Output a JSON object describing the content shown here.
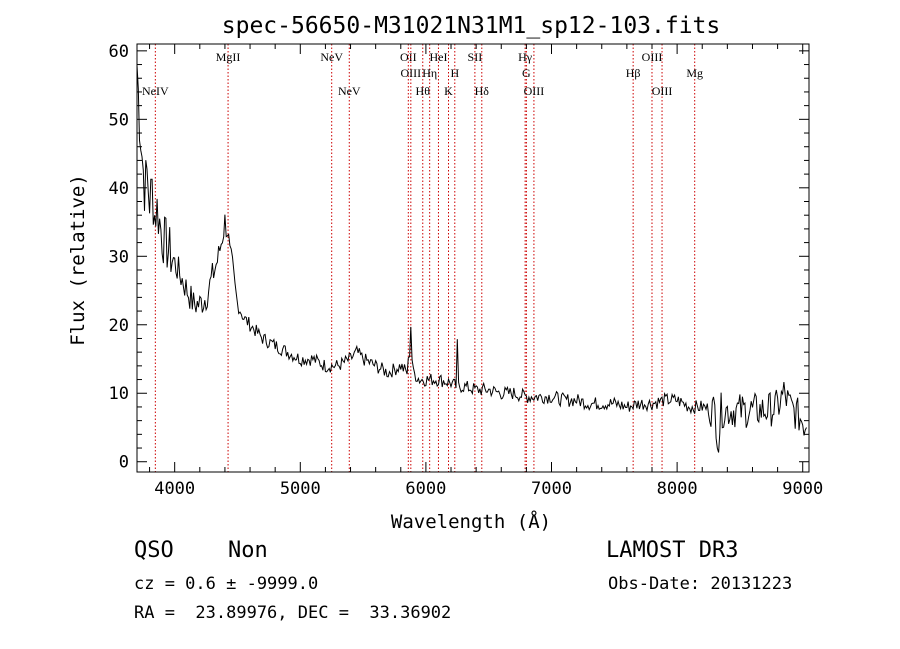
{
  "chart_data": {
    "type": "line",
    "title": "spec-56650-M31021N31M1_sp12-103.fits",
    "xlabel": "Wavelength (Å)",
    "ylabel": "Flux (relative)",
    "xlim": [
      3700,
      9050
    ],
    "ylim": [
      -1.5,
      61
    ],
    "xticks": [
      4000,
      5000,
      6000,
      7000,
      8000,
      9000
    ],
    "yticks": [
      0,
      10,
      20,
      30,
      40,
      50,
      60
    ],
    "series": [
      {
        "name": "spectrum",
        "color": "#000000",
        "x": [
          3700,
          3720,
          3740,
          3760,
          3780,
          3800,
          3820,
          3840,
          3860,
          3880,
          3900,
          3950,
          4000,
          4050,
          4100,
          4150,
          4200,
          4250,
          4300,
          4350,
          4380,
          4400,
          4420,
          4440,
          4460,
          4480,
          4500,
          4550,
          4600,
          4650,
          4700,
          4800,
          4900,
          5000,
          5100,
          5200,
          5300,
          5400,
          5450,
          5500,
          5600,
          5700,
          5800,
          5850,
          5870,
          5880,
          5890,
          5900,
          5950,
          6000,
          6100,
          6200,
          6240,
          6250,
          6260,
          6300,
          6400,
          6500,
          6600,
          6700,
          6800,
          6900,
          7000,
          7100,
          7200,
          7300,
          7400,
          7500,
          7600,
          7700,
          7800,
          7900,
          8000,
          8100,
          8200,
          8300,
          8330,
          8350,
          8400,
          8500,
          8600,
          8700,
          8800,
          8850,
          8900,
          8950,
          9000,
          9030
        ],
        "values": [
          58,
          50,
          45,
          40,
          42,
          38,
          40,
          36,
          37,
          35,
          33,
          31,
          29,
          27,
          25,
          23,
          23,
          24,
          27,
          30,
          33,
          35,
          34,
          30,
          28,
          25,
          23,
          21,
          20,
          19,
          18,
          17,
          16,
          15,
          15,
          14,
          14,
          15,
          16,
          15,
          14,
          13,
          14,
          13,
          16,
          20,
          15,
          13,
          12,
          12,
          12,
          11.5,
          11,
          17,
          11,
          11,
          10.5,
          10.5,
          10,
          10,
          9.5,
          9.5,
          9.5,
          9,
          9,
          8.5,
          8.5,
          8.5,
          8,
          8.5,
          8.5,
          9,
          9,
          8,
          8,
          7.5,
          3,
          7.5,
          7.5,
          7.5,
          7.5,
          7.5,
          8,
          10,
          8,
          7,
          6,
          5
        ]
      }
    ],
    "lines": [
      {
        "label": "NeIV",
        "x": 3846,
        "row": "lower"
      },
      {
        "label": "MgII",
        "x": 4425,
        "row": "upper"
      },
      {
        "label": "NeV",
        "x": 5250,
        "row": "upper"
      },
      {
        "label": "NeV",
        "x": 5390,
        "row": "lower"
      },
      {
        "label": "OII",
        "x": 5860,
        "row": "upper"
      },
      {
        "label": "OIII",
        "x": 5880,
        "row": "middle"
      },
      {
        "label": "Hθ",
        "x": 5975,
        "row": "lower"
      },
      {
        "label": "Hη",
        "x": 6030,
        "row": "middle"
      },
      {
        "label": "HeI",
        "x": 6100,
        "row": "upper"
      },
      {
        "label": "K",
        "x": 6180,
        "row": "lower"
      },
      {
        "label": "H",
        "x": 6230,
        "row": "middle"
      },
      {
        "label": "SII",
        "x": 6390,
        "row": "upper"
      },
      {
        "label": "Hδ",
        "x": 6445,
        "row": "lower"
      },
      {
        "label": "Hγ",
        "x": 6790,
        "row": "upper"
      },
      {
        "label": "G",
        "x": 6800,
        "row": "middle"
      },
      {
        "label": "OIII",
        "x": 6860,
        "row": "lower"
      },
      {
        "label": "Hβ",
        "x": 7650,
        "row": "middle"
      },
      {
        "label": "OIII",
        "x": 7800,
        "row": "upper"
      },
      {
        "label": "OIII",
        "x": 7880,
        "row": "lower"
      },
      {
        "label": "Mg",
        "x": 8140,
        "row": "middle"
      }
    ],
    "line_color": "#cc0000"
  },
  "info": {
    "class": "QSO",
    "subclass": "Non",
    "survey": "LAMOST DR3",
    "cz": "cz = 0.6 ± -9999.0",
    "obs_date": "Obs-Date: 20131223",
    "radec": "RA =  23.89976, DEC =  33.36902"
  }
}
